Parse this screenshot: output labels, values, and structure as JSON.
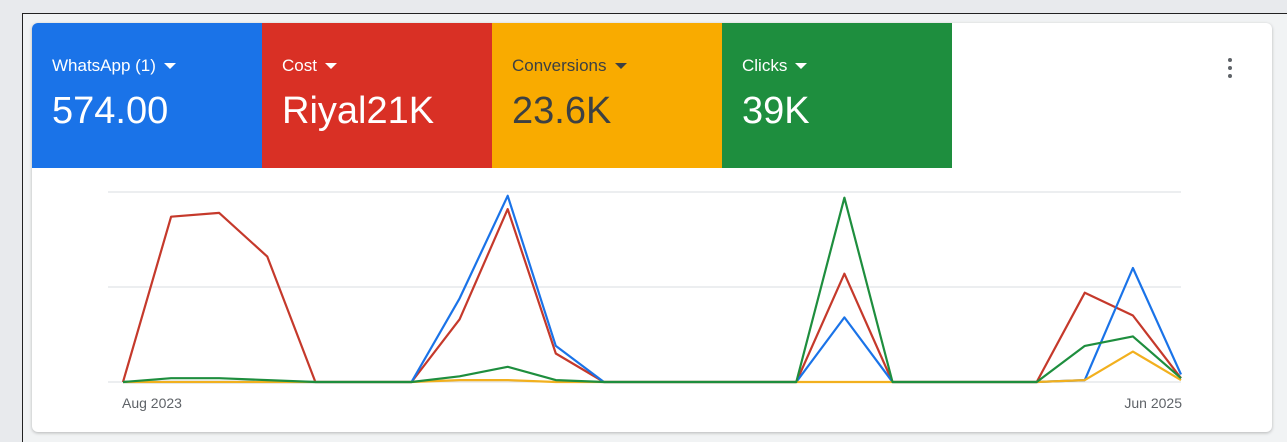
{
  "chart_data": {
    "type": "line",
    "categories": [
      "Aug 2023",
      null,
      null,
      null,
      null,
      null,
      null,
      null,
      null,
      null,
      null,
      null,
      null,
      null,
      null,
      null,
      null,
      null,
      null,
      null,
      null,
      null,
      "Jun 2025"
    ],
    "series": [
      {
        "name": "WhatsApp (1)",
        "summary": "574.00",
        "color": "#1a73e8",
        "text_color": "#ffffff",
        "line_color": "#1a73e8",
        "values": [
          0,
          0,
          0,
          0,
          0,
          0,
          0,
          44,
          98,
          19,
          0,
          0,
          0,
          0,
          0,
          34,
          0,
          0,
          0,
          0,
          1,
          60,
          4
        ]
      },
      {
        "name": "Cost",
        "summary": "Riyal21K",
        "color": "#d93025",
        "text_color": "#ffffff",
        "line_color": "#c5392b",
        "values": [
          0,
          87,
          89,
          66,
          0,
          0,
          0,
          33,
          91,
          15,
          0,
          0,
          0,
          0,
          0,
          57,
          0,
          0,
          0,
          0,
          47,
          35,
          2
        ]
      },
      {
        "name": "Conversions",
        "summary": "23.6K",
        "color": "#f9ab00",
        "text_color": "#3c4043",
        "line_color": "#f2b01e",
        "values": [
          0,
          0,
          0,
          0,
          0,
          0,
          0,
          1,
          1,
          0,
          0,
          0,
          0,
          0,
          0,
          0,
          0,
          0,
          0,
          0,
          1,
          16,
          1
        ]
      },
      {
        "name": "Clicks",
        "summary": "39K",
        "color": "#1e8e3e",
        "text_color": "#ffffff",
        "line_color": "#1e8e3e",
        "values": [
          0,
          2,
          2,
          1,
          0,
          0,
          0,
          3,
          8,
          1,
          0,
          0,
          0,
          0,
          0,
          97,
          0,
          0,
          0,
          0,
          19,
          24,
          2
        ]
      }
    ],
    "ylim": [
      0,
      100
    ],
    "yticks": [
      0,
      50,
      100
    ],
    "grid": true,
    "tick_labels": false
  }
}
